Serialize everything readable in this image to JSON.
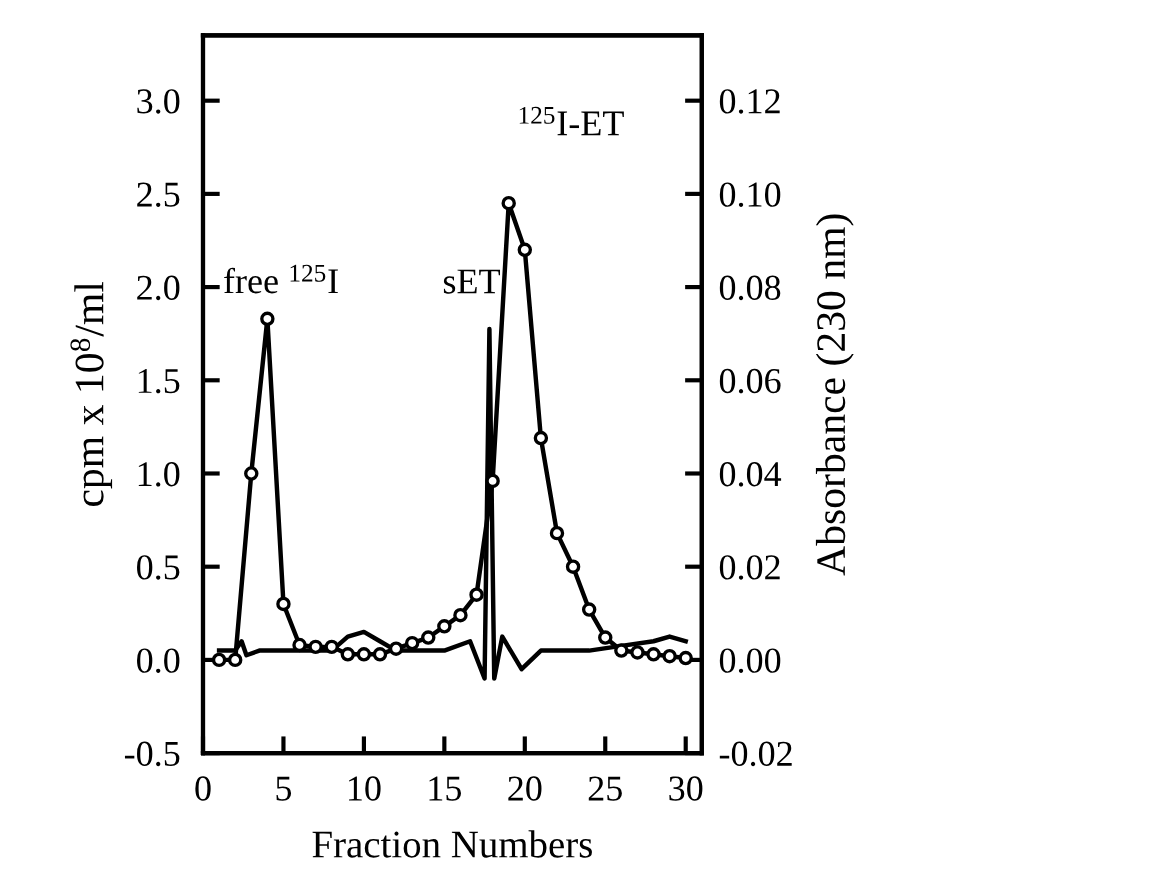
{
  "chart_data": {
    "type": "line",
    "xlabel": "Fraction Numbers",
    "ylabel": "cpm x 10$^{8}$/ml",
    "y2label": "Absorbance (230 nm)",
    "xlim": [
      0,
      31
    ],
    "xticks": [
      0,
      5,
      10,
      15,
      20,
      25,
      30
    ],
    "ylim": [
      -0.5,
      3.35
    ],
    "yticks": [
      {
        "value": -0.5,
        "label": "-0.5"
      },
      {
        "value": 0,
        "label": "0.0"
      },
      {
        "value": 0.5,
        "label": "0.5"
      },
      {
        "value": 1,
        "label": "1.0"
      },
      {
        "value": 1.5,
        "label": "1.5"
      },
      {
        "value": 2,
        "label": "2.0"
      },
      {
        "value": 2.5,
        "label": "2.5"
      },
      {
        "value": 3,
        "label": "3.0"
      }
    ],
    "y2lim": [
      -0.02,
      0.134
    ],
    "y2ticks": [
      {
        "value": -0.02,
        "label": "-0.02"
      },
      {
        "value": 0,
        "label": "0.00"
      },
      {
        "value": 0.02,
        "label": "0.02"
      },
      {
        "value": 0.04,
        "label": "0.04"
      },
      {
        "value": 0.06,
        "label": "0.06"
      },
      {
        "value": 0.08,
        "label": "0.08"
      },
      {
        "value": 0.1,
        "label": "0.10"
      },
      {
        "value": 0.12,
        "label": "0.12"
      }
    ],
    "grid": false,
    "series": [
      {
        "color": "#000000",
        "marker": "circle",
        "x": [
          1,
          2,
          3,
          4,
          5,
          6,
          7,
          8,
          9,
          10,
          11,
          12,
          13,
          14,
          15,
          16,
          17,
          18,
          19,
          20,
          21,
          22,
          23,
          24,
          25,
          26,
          27,
          28,
          29,
          30
        ],
        "values": [
          0.0,
          0.0,
          1.0,
          1.83,
          0.3,
          0.08,
          0.07,
          0.07,
          0.03,
          0.03,
          0.03,
          0.06,
          0.09,
          0.12,
          0.18,
          0.24,
          0.35,
          0.96,
          2.45,
          2.2,
          1.19,
          0.68,
          0.5,
          0.27,
          0.12,
          0.05,
          0.04,
          0.03,
          0.02,
          0.01
        ]
      },
      {
        "color": "#000000",
        "marker": "none",
        "axis": "y2",
        "x": [
          1,
          2,
          2.4,
          2.7,
          3.5,
          5,
          8,
          9,
          10,
          11,
          12,
          15,
          16.6,
          17.5,
          17.8,
          18.1,
          18.6,
          19.8,
          21,
          24,
          26,
          28,
          29,
          30
        ],
        "values": [
          0.002,
          0.002,
          0.004,
          0.001,
          0.002,
          0.002,
          0.002,
          0.005,
          0.006,
          0.004,
          0.002,
          0.002,
          0.004,
          -0.004,
          0.071,
          -0.004,
          0.005,
          -0.002,
          0.002,
          0.002,
          0.003,
          0.004,
          0.005,
          0.004
        ]
      }
    ],
    "annotations": [
      "free $^{125}$I",
      "sET",
      "$^{125}$I-ET"
    ]
  }
}
